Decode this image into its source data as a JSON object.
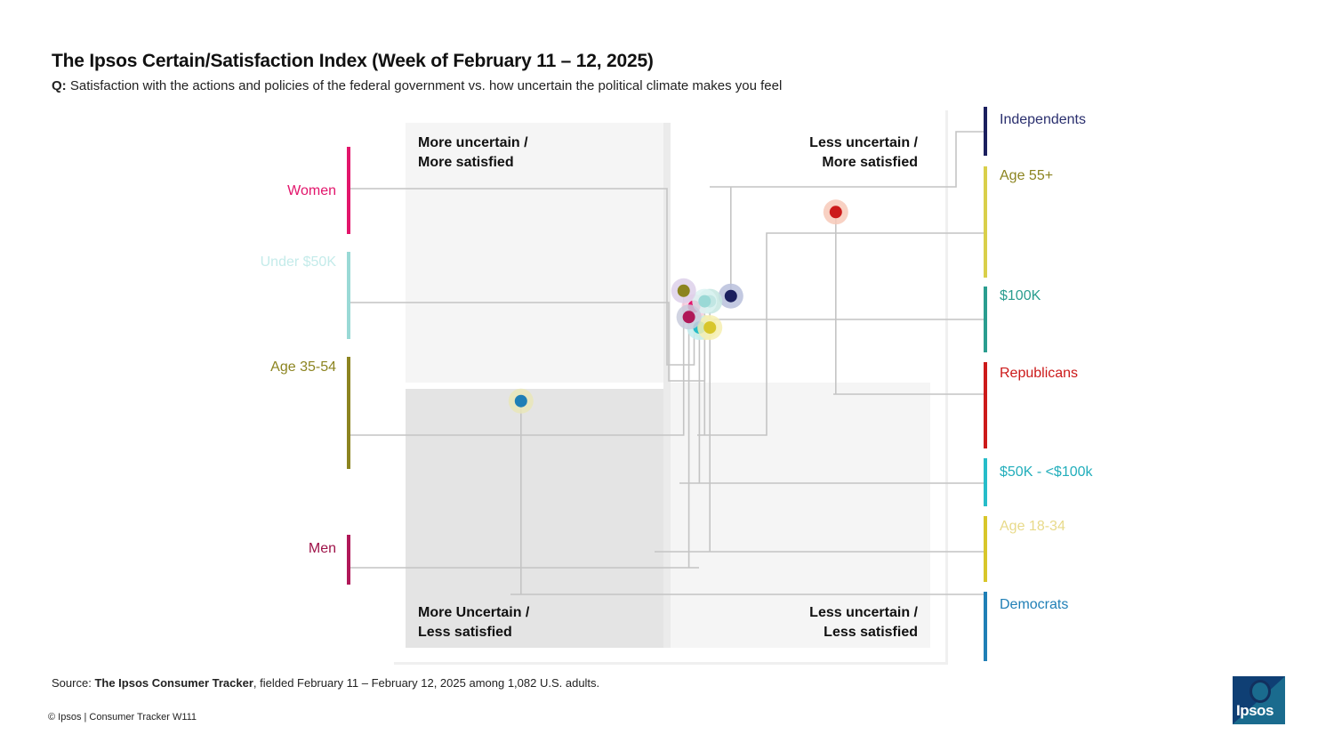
{
  "title": "The Ipsos Certain/Satisfaction Index (Week of February 11 – 12, 2025)",
  "question": {
    "prefix": "Q:",
    "text": "Satisfaction with the actions and policies of the federal government vs. how uncertain the political climate makes you feel"
  },
  "source": {
    "prefix": "Source:",
    "name": "The Ipsos Consumer Tracker",
    "rest": ", fielded February 11 – February 12, 2025 among 1,082 U.S. adults."
  },
  "copyright": "© Ipsos | Consumer Tracker W111",
  "logo_text": "Ipsos",
  "chart_data": {
    "type": "scatter",
    "title": "The Ipsos Certain/Satisfaction Index (Week of February 11 – 12, 2025)",
    "x_meaning": "Certainty (less uncertain to the right)",
    "y_meaning": "Satisfaction (more satisfied upward)",
    "grid": false,
    "quadrants": [
      {
        "id": "tl",
        "text": [
          "More uncertain /",
          "More satisfied"
        ]
      },
      {
        "id": "tr",
        "text": [
          "Less uncertain /",
          "More satisfied"
        ]
      },
      {
        "id": "bl",
        "text": [
          "More Uncertain /",
          "Less satisfied"
        ]
      },
      {
        "id": "br",
        "text": [
          "Less uncertain /",
          "Less satisfied"
        ]
      }
    ],
    "series": [
      {
        "name": "Independents",
        "side": "right",
        "color": "#1b1f5e",
        "halo": "#b9bfdc",
        "text_color": "#2a2f6e",
        "x": 0.62,
        "y": 0.67
      },
      {
        "name": "Age 55+",
        "side": "right",
        "color": "#d9cf4a",
        "halo": "#efeab0",
        "text_color": "#8c8420",
        "x": 0.57,
        "y": 0.61
      },
      {
        "name": "$100K",
        "side": "right",
        "color": "#2a9d8f",
        "halo": "#c5e6e1",
        "text_color": "#2a9d8f",
        "x": 0.58,
        "y": 0.66
      },
      {
        "name": "Republicans",
        "side": "right",
        "color": "#cc1a1a",
        "halo": "#f7c9b9",
        "text_color": "#cc1a1a",
        "x": 0.82,
        "y": 0.83
      },
      {
        "name": "$50K - <$100k",
        "side": "right",
        "color": "#26bcc9",
        "halo": "#c5edf0",
        "text_color": "#22aebb",
        "x": 0.56,
        "y": 0.61
      },
      {
        "name": "Age 18-34",
        "side": "right",
        "color": "#d8c62a",
        "halo": "#f6eeb0",
        "text_color": "#e8da8a",
        "x": 0.58,
        "y": 0.61
      },
      {
        "name": "Democrats",
        "side": "right",
        "color": "#1f7fb6",
        "halo": "#e9e6b8",
        "text_color": "#1f7fb6",
        "x": 0.22,
        "y": 0.47
      },
      {
        "name": "Women",
        "side": "left",
        "color": "#e2156b",
        "halo": "#f7c9dc",
        "text_color": "#e2156b",
        "x": 0.55,
        "y": 0.65
      },
      {
        "name": "Under $50K",
        "side": "left",
        "color": "#9ad9d6",
        "halo": "#dcf3f2",
        "text_color": "#c4ebea",
        "x": 0.57,
        "y": 0.66
      },
      {
        "name": "Age 35-54",
        "side": "left",
        "color": "#8c8420",
        "halo": "#ddd0ea",
        "text_color": "#8c8420",
        "x": 0.53,
        "y": 0.68
      },
      {
        "name": "Men",
        "side": "left",
        "color": "#b01858",
        "halo": "#c9cddd",
        "text_color": "#9e1248",
        "x": 0.54,
        "y": 0.63
      }
    ]
  }
}
